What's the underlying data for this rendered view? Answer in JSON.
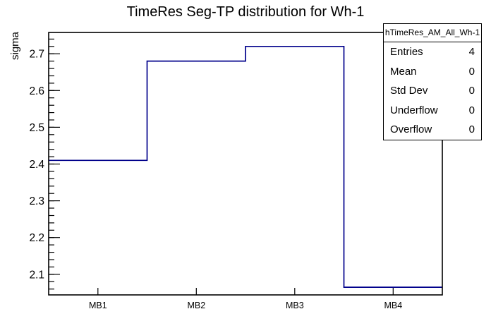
{
  "title": "TimeRes Seg-TP distribution for Wh-1",
  "chart_data": {
    "type": "step-histogram",
    "title": "TimeRes Seg-TP distribution for Wh-1",
    "xlabel": "",
    "ylabel": "sigma",
    "categories": [
      "MB1",
      "MB2",
      "MB3",
      "MB4"
    ],
    "values": [
      2.41,
      2.68,
      2.72,
      2.065
    ],
    "ylim": [
      2.044,
      2.758
    ],
    "y_major_ticks": [
      {
        "value": 2.1,
        "label": "2.1"
      },
      {
        "value": 2.2,
        "label": "2.2"
      },
      {
        "value": 2.3,
        "label": "2.3"
      },
      {
        "value": 2.4,
        "label": "2.4"
      },
      {
        "value": 2.5,
        "label": "2.5"
      },
      {
        "value": 2.6,
        "label": "2.6"
      },
      {
        "value": 2.7,
        "label": "2.7"
      }
    ],
    "y_minor_step": 0.02,
    "grid": false,
    "legend_position": "none",
    "line_color": "#00008b",
    "axis_color": "#000000",
    "background_color": "#ffffff"
  },
  "stats_box": {
    "title": "hTimeRes_AM_All_Wh-1",
    "rows": [
      {
        "label": "Entries",
        "value": "4"
      },
      {
        "label": "Mean",
        "value": "0"
      },
      {
        "label": "Std Dev",
        "value": "0"
      },
      {
        "label": "Underflow",
        "value": "0"
      },
      {
        "label": "Overflow",
        "value": "0"
      }
    ]
  }
}
